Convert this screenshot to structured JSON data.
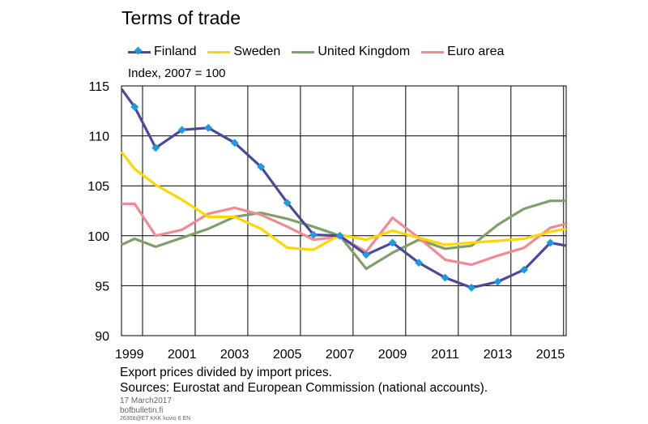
{
  "header": {
    "title": "Terms of trade",
    "subtitle": "Index, 2007 = 100"
  },
  "notes": {
    "line1": "Export prices divided by import prices.",
    "line2": "Sources: Eurostat and European Commission (national accounts)."
  },
  "footer": {
    "date": "17 March2017",
    "site": "bofbulletin.fi",
    "code": "26308@ET KKK kuvio 6 EN"
  },
  "colors": {
    "finland": "#4a4a9c",
    "finland_marker": "#1e9be0",
    "sweden": "#ffd700",
    "united_kingdom": "#7fa06a",
    "euro_area": "#f08a93",
    "axis": "#000000"
  },
  "chart_data": {
    "type": "line",
    "title": "Terms of trade",
    "ylabel": "Index, 2007 = 100",
    "xlabel": "",
    "xlim": [
      1998.7,
      2015.6
    ],
    "ylim": [
      90,
      115
    ],
    "x_ticks": [
      1999,
      2001,
      2003,
      2005,
      2007,
      2009,
      2011,
      2013,
      2015
    ],
    "y_ticks": [
      90,
      95,
      100,
      105,
      110,
      115
    ],
    "grid": true,
    "legend_position": "top",
    "series": [
      {
        "name": "Finland",
        "color_key": "finland",
        "markers": true,
        "x": [
          1998.7,
          1999.2,
          2000.0,
          2001.0,
          2002.0,
          2003.0,
          2004.0,
          2005.0,
          2006.0,
          2007.0,
          2008.0,
          2009.0,
          2010.0,
          2011.0,
          2012.0,
          2013.0,
          2014.0,
          2015.0,
          2015.6
        ],
        "y": [
          114.7,
          112.9,
          108.8,
          110.6,
          110.8,
          109.3,
          106.9,
          103.3,
          100.1,
          100.0,
          98.1,
          99.3,
          97.3,
          95.8,
          94.8,
          95.4,
          96.6,
          99.3,
          99.0
        ]
      },
      {
        "name": "Sweden",
        "color_key": "sweden",
        "x": [
          1998.7,
          1999.2,
          2000.0,
          2001.0,
          2002.0,
          2003.0,
          2004.0,
          2005.0,
          2006.0,
          2007.0,
          2008.0,
          2009.0,
          2010.0,
          2011.0,
          2012.0,
          2013.0,
          2014.0,
          2015.0,
          2015.6
        ],
        "y": [
          108.4,
          106.7,
          105.1,
          103.6,
          101.9,
          101.9,
          100.7,
          98.8,
          98.6,
          100.1,
          99.6,
          100.5,
          99.8,
          99.1,
          99.3,
          99.5,
          99.7,
          100.4,
          100.7
        ]
      },
      {
        "name": "United Kingdom",
        "color_key": "united_kingdom",
        "x": [
          1998.7,
          1999.2,
          2000.0,
          2001.0,
          2002.0,
          2003.0,
          2004.0,
          2005.0,
          2006.0,
          2007.0,
          2008.0,
          2009.0,
          2010.0,
          2011.0,
          2012.0,
          2013.0,
          2014.0,
          2015.0,
          2015.6
        ],
        "y": [
          99.1,
          99.7,
          98.9,
          99.8,
          100.7,
          101.9,
          102.3,
          101.7,
          100.9,
          100.0,
          96.7,
          98.3,
          99.6,
          98.7,
          99.0,
          101.1,
          102.7,
          103.5,
          103.5
        ]
      },
      {
        "name": "Euro area",
        "color_key": "euro_area",
        "x": [
          1998.7,
          1999.2,
          2000.0,
          2001.0,
          2002.0,
          2003.0,
          2004.0,
          2005.0,
          2006.0,
          2007.0,
          2008.0,
          2009.0,
          2010.0,
          2011.0,
          2012.0,
          2013.0,
          2014.0,
          2015.0,
          2015.6
        ],
        "y": [
          103.2,
          103.2,
          100.0,
          100.6,
          102.2,
          102.8,
          102.1,
          100.9,
          99.6,
          99.9,
          98.4,
          101.8,
          99.8,
          97.6,
          97.1,
          98.0,
          98.8,
          100.8,
          101.2
        ]
      }
    ]
  }
}
